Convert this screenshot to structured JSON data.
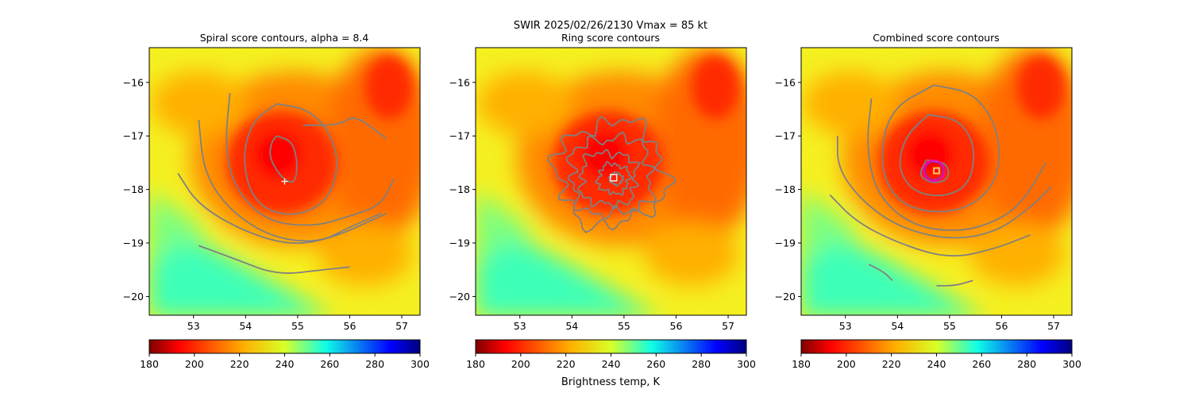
{
  "figure": {
    "suptitle_line1": "SWIR  2025/02/26/2130    Vmax = 85 kt",
    "colorbar_label": "Brightness temp, K"
  },
  "colors": {
    "contour": "#808080",
    "center_circle": "#ff00aa",
    "center_circle_inner": "#7a2cff",
    "marker_white": "#ffffff",
    "marker_orange": "#ffa500"
  },
  "colormap": {
    "name": "jet_r",
    "vmin": 180,
    "vmax": 300
  },
  "chart_data": [
    {
      "type": "heatmap",
      "title": "Spiral score contours, alpha =  8.4",
      "xlim": [
        52.15,
        57.35
      ],
      "ylim": [
        -20.35,
        -15.35
      ],
      "xticks": [
        "53",
        "54",
        "55",
        "56",
        "57"
      ],
      "yticks": [
        "−16",
        "−17",
        "−18",
        "−19",
        "−20"
      ],
      "colorbar_ticks": [
        "180",
        "200",
        "220",
        "240",
        "260",
        "280",
        "300"
      ],
      "center_marker": {
        "shape": "plus",
        "x": 54.75,
        "y": -17.85
      },
      "contours": [
        [
          [
            54.6,
            -17.0
          ],
          [
            54.9,
            -17.1
          ],
          [
            55.0,
            -17.5
          ],
          [
            54.95,
            -17.9
          ],
          [
            54.7,
            -17.8
          ],
          [
            54.45,
            -17.4
          ],
          [
            54.5,
            -17.1
          ],
          [
            54.6,
            -17.0
          ]
        ],
        [
          [
            54.6,
            -16.4
          ],
          [
            55.2,
            -16.5
          ],
          [
            55.6,
            -16.9
          ],
          [
            55.8,
            -17.5
          ],
          [
            55.6,
            -18.2
          ],
          [
            55.0,
            -18.5
          ],
          [
            54.4,
            -18.4
          ],
          [
            54.05,
            -18.0
          ],
          [
            53.95,
            -17.3
          ],
          [
            54.15,
            -16.7
          ],
          [
            54.6,
            -16.4
          ]
        ],
        [
          [
            53.7,
            -16.2
          ],
          [
            53.6,
            -17.2
          ],
          [
            53.8,
            -18.0
          ],
          [
            54.4,
            -18.6
          ],
          [
            55.3,
            -18.7
          ],
          [
            56.0,
            -18.5
          ],
          [
            56.6,
            -18.3
          ],
          [
            56.85,
            -17.8
          ]
        ],
        [
          [
            53.1,
            -16.7
          ],
          [
            53.2,
            -17.7
          ],
          [
            53.7,
            -18.4
          ],
          [
            54.5,
            -18.9
          ],
          [
            55.4,
            -19.0
          ],
          [
            56.0,
            -18.7
          ],
          [
            56.6,
            -18.45
          ]
        ],
        [
          [
            52.7,
            -17.7
          ],
          [
            53.1,
            -18.3
          ],
          [
            54.0,
            -18.8
          ],
          [
            54.9,
            -19.05
          ],
          [
            55.7,
            -18.9
          ],
          [
            56.7,
            -18.45
          ]
        ],
        [
          [
            53.1,
            -19.05
          ],
          [
            53.8,
            -19.3
          ],
          [
            54.6,
            -19.6
          ],
          [
            55.5,
            -19.5
          ],
          [
            56.0,
            -19.45
          ]
        ],
        [
          [
            55.1,
            -16.8
          ],
          [
            55.8,
            -16.8
          ],
          [
            56.1,
            -16.6
          ],
          [
            56.7,
            -17.05
          ]
        ]
      ]
    },
    {
      "type": "heatmap",
      "title": "Ring score contours",
      "xlim": [
        52.15,
        57.35
      ],
      "ylim": [
        -20.35,
        -15.35
      ],
      "xticks": [
        "53",
        "54",
        "55",
        "56",
        "57"
      ],
      "yticks": [
        "−16",
        "−17",
        "−18",
        "−19",
        "−20"
      ],
      "colorbar_ticks": [
        "180",
        "200",
        "220",
        "240",
        "260",
        "280",
        "300"
      ],
      "center_marker": {
        "shape": "square",
        "x": 54.8,
        "y": -17.78
      },
      "ring_contours": [
        {
          "x": 54.75,
          "y": -17.7,
          "r": 1.05
        },
        {
          "x": 54.75,
          "y": -17.75,
          "r": 0.8
        },
        {
          "x": 54.7,
          "y": -17.8,
          "r": 0.55
        },
        {
          "x": 54.8,
          "y": -17.8,
          "r": 0.3
        },
        {
          "x": 54.85,
          "y": -17.8,
          "r": 0.12
        }
      ]
    },
    {
      "type": "heatmap",
      "title": "Combined score contours",
      "xlim": [
        52.15,
        57.35
      ],
      "ylim": [
        -20.35,
        -15.35
      ],
      "xticks": [
        "53",
        "54",
        "55",
        "56",
        "57"
      ],
      "yticks": [
        "−16",
        "−17",
        "−18",
        "−19",
        "−20"
      ],
      "colorbar_ticks": [
        "180",
        "200",
        "220",
        "240",
        "260",
        "280",
        "300"
      ],
      "center_marker": {
        "shape": "square",
        "x": 54.75,
        "y": -17.65
      },
      "center_circle": {
        "x": 54.7,
        "y": -17.65,
        "r": 0.2
      },
      "contours": [
        [
          [
            54.55,
            -17.45
          ],
          [
            54.95,
            -17.5
          ],
          [
            55.0,
            -17.8
          ],
          [
            54.7,
            -17.9
          ],
          [
            54.4,
            -17.75
          ],
          [
            54.55,
            -17.45
          ]
        ],
        [
          [
            54.6,
            -16.6
          ],
          [
            55.2,
            -16.7
          ],
          [
            55.5,
            -17.2
          ],
          [
            55.4,
            -17.9
          ],
          [
            54.9,
            -18.15
          ],
          [
            54.3,
            -18.05
          ],
          [
            54.0,
            -17.6
          ],
          [
            54.15,
            -17.0
          ],
          [
            54.6,
            -16.6
          ]
        ],
        [
          [
            54.7,
            -16.05
          ],
          [
            55.5,
            -16.2
          ],
          [
            55.95,
            -16.9
          ],
          [
            55.95,
            -17.8
          ],
          [
            55.4,
            -18.35
          ],
          [
            54.6,
            -18.45
          ],
          [
            53.95,
            -18.2
          ],
          [
            53.65,
            -17.5
          ],
          [
            53.85,
            -16.5
          ],
          [
            54.7,
            -16.05
          ]
        ],
        [
          [
            53.5,
            -16.3
          ],
          [
            53.4,
            -17.2
          ],
          [
            53.6,
            -18.1
          ],
          [
            54.3,
            -18.7
          ],
          [
            55.3,
            -18.8
          ],
          [
            56.1,
            -18.5
          ],
          [
            56.5,
            -18.1
          ],
          [
            56.85,
            -17.5
          ]
        ],
        [
          [
            52.85,
            -17.0
          ],
          [
            52.85,
            -17.6
          ],
          [
            53.3,
            -18.2
          ],
          [
            54.0,
            -18.7
          ],
          [
            55.0,
            -18.95
          ],
          [
            55.9,
            -18.8
          ],
          [
            56.6,
            -18.3
          ],
          [
            56.95,
            -17.95
          ]
        ],
        [
          [
            52.7,
            -18.1
          ],
          [
            53.2,
            -18.6
          ],
          [
            54.0,
            -19.0
          ],
          [
            55.0,
            -19.3
          ],
          [
            55.9,
            -19.1
          ],
          [
            56.55,
            -18.85
          ]
        ],
        [
          [
            53.45,
            -19.4
          ],
          [
            53.75,
            -19.55
          ],
          [
            53.9,
            -19.7
          ]
        ],
        [
          [
            54.75,
            -19.8
          ],
          [
            55.1,
            -19.8
          ],
          [
            55.45,
            -19.7
          ]
        ]
      ]
    }
  ]
}
